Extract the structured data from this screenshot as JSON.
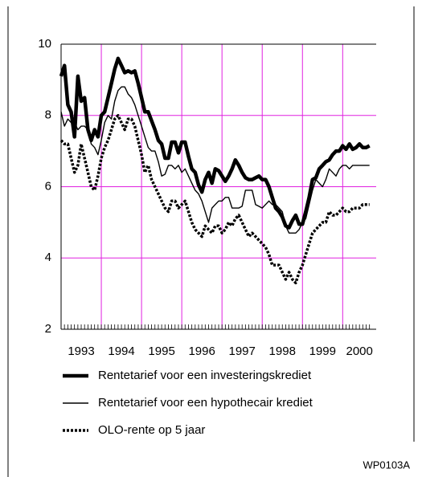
{
  "chart_data": {
    "type": "line",
    "x": [
      1993,
      1993.083,
      1993.167,
      1993.25,
      1993.333,
      1993.417,
      1993.5,
      1993.583,
      1993.667,
      1993.75,
      1993.833,
      1993.917,
      1994,
      1994.083,
      1994.167,
      1994.25,
      1994.333,
      1994.417,
      1994.5,
      1994.583,
      1994.667,
      1994.75,
      1994.833,
      1994.917,
      1995,
      1995.083,
      1995.167,
      1995.25,
      1995.333,
      1995.417,
      1995.5,
      1995.583,
      1995.667,
      1995.75,
      1995.833,
      1995.917,
      1996,
      1996.083,
      1996.167,
      1996.25,
      1996.333,
      1996.417,
      1996.5,
      1996.583,
      1996.667,
      1996.75,
      1996.833,
      1996.917,
      1997,
      1997.083,
      1997.167,
      1997.25,
      1997.333,
      1997.417,
      1997.5,
      1997.583,
      1997.667,
      1997.75,
      1997.833,
      1997.917,
      1998,
      1998.083,
      1998.167,
      1998.25,
      1998.333,
      1998.417,
      1998.5,
      1998.583,
      1998.667,
      1998.75,
      1998.833,
      1998.917,
      1999,
      1999.083,
      1999.167,
      1999.25,
      1999.333,
      1999.417,
      1999.5,
      1999.583,
      1999.667,
      1999.75,
      1999.833,
      1999.917,
      2000,
      2000.083,
      2000.167,
      2000.25,
      2000.333,
      2000.417,
      2000.5,
      2000.583,
      2000.667
    ],
    "series": [
      {
        "name": "Rentetarief voor een investeringskrediet",
        "color": "#000000",
        "width": 4.5,
        "dash": false,
        "values": [
          9.1,
          9.4,
          8.3,
          8.1,
          7.4,
          9.1,
          8.4,
          8.5,
          7.6,
          7.3,
          7.6,
          7.4,
          8.0,
          8.1,
          8.5,
          8.9,
          9.3,
          9.6,
          9.4,
          9.2,
          9.25,
          9.2,
          9.25,
          8.9,
          8.5,
          8.1,
          8.1,
          7.85,
          7.6,
          7.3,
          7.2,
          6.8,
          6.8,
          7.25,
          7.25,
          6.95,
          7.25,
          7.25,
          6.85,
          6.5,
          6.4,
          6.05,
          5.85,
          6.2,
          6.4,
          6.1,
          6.5,
          6.45,
          6.3,
          6.15,
          6.3,
          6.5,
          6.75,
          6.6,
          6.4,
          6.25,
          6.2,
          6.2,
          6.25,
          6.3,
          6.2,
          6.2,
          6.0,
          5.7,
          5.4,
          5.3,
          5.15,
          4.9,
          4.85,
          5.05,
          5.2,
          4.95,
          4.95,
          5.3,
          5.7,
          6.2,
          6.25,
          6.5,
          6.6,
          6.7,
          6.75,
          6.9,
          7.0,
          7.0,
          7.15,
          7.05,
          7.2,
          7.05,
          7.1,
          7.2,
          7.1,
          7.1,
          7.15
        ]
      },
      {
        "name": "Rentetarief voor een hypothecair krediet",
        "color": "#000000",
        "width": 1.4,
        "dash": false,
        "values": [
          8.1,
          7.7,
          7.9,
          7.8,
          7.8,
          7.6,
          7.7,
          7.7,
          7.6,
          7.2,
          7.1,
          6.9,
          7.3,
          7.8,
          8.0,
          7.9,
          8.4,
          8.7,
          8.8,
          8.8,
          8.6,
          8.5,
          8.3,
          8.0,
          7.7,
          7.4,
          7.1,
          7.0,
          7.0,
          6.7,
          6.3,
          6.35,
          6.6,
          6.6,
          6.5,
          6.6,
          6.4,
          6.5,
          6.3,
          6.1,
          5.9,
          5.8,
          5.6,
          5.3,
          5.0,
          5.4,
          5.5,
          5.6,
          5.6,
          5.7,
          5.7,
          5.4,
          5.4,
          5.4,
          5.45,
          5.9,
          5.9,
          5.9,
          5.5,
          5.45,
          5.4,
          5.5,
          5.6,
          5.5,
          5.5,
          5.4,
          5.3,
          4.9,
          4.7,
          4.7,
          4.7,
          4.8,
          5.0,
          5.1,
          5.5,
          5.9,
          6.2,
          6.1,
          6.0,
          6.2,
          6.5,
          6.4,
          6.3,
          6.5,
          6.6,
          6.6,
          6.5,
          6.6,
          6.6,
          6.6,
          6.6,
          6.6,
          6.6
        ]
      },
      {
        "name": "OLO-rente op 5 jaar",
        "color": "#000000",
        "width": 3.5,
        "dash": true,
        "values": [
          7.3,
          7.2,
          7.2,
          6.8,
          6.4,
          6.6,
          7.2,
          6.8,
          6.4,
          6.0,
          5.9,
          6.3,
          6.8,
          7.1,
          7.3,
          7.6,
          7.9,
          8.0,
          7.8,
          7.6,
          7.9,
          7.9,
          7.7,
          7.3,
          6.9,
          6.4,
          6.6,
          6.2,
          6.0,
          5.8,
          5.6,
          5.4,
          5.3,
          5.6,
          5.6,
          5.4,
          5.5,
          5.6,
          5.3,
          5.0,
          4.8,
          4.7,
          4.6,
          4.9,
          4.8,
          4.7,
          4.9,
          4.9,
          4.7,
          4.8,
          5.0,
          4.9,
          5.1,
          5.2,
          5.0,
          4.8,
          4.6,
          4.7,
          4.6,
          4.5,
          4.4,
          4.3,
          4.1,
          3.8,
          3.8,
          3.8,
          3.6,
          3.4,
          3.6,
          3.4,
          3.3,
          3.6,
          3.8,
          4.1,
          4.4,
          4.7,
          4.8,
          4.9,
          5.0,
          5.0,
          5.3,
          5.2,
          5.2,
          5.3,
          5.4,
          5.3,
          5.3,
          5.4,
          5.4,
          5.4,
          5.5,
          5.5,
          5.5
        ]
      }
    ],
    "xlim": [
      1993,
      2000.833
    ],
    "xticks": [
      {
        "value": 1993.5,
        "label": "1993"
      },
      {
        "value": 1994.5,
        "label": "1994"
      },
      {
        "value": 1995.5,
        "label": "1995"
      },
      {
        "value": 1996.5,
        "label": "1996"
      },
      {
        "value": 1997.5,
        "label": "1997"
      },
      {
        "value": 1998.5,
        "label": "1998"
      },
      {
        "value": 1999.5,
        "label": "1999"
      },
      {
        "value": 2000.417,
        "label": "2000"
      }
    ],
    "xgrid": [
      1994,
      1995,
      1996,
      1997,
      1998,
      1999,
      2000
    ],
    "ylim": [
      2,
      10
    ],
    "yticks": [
      2,
      4,
      6,
      8,
      10
    ],
    "grid": true,
    "grid_color": "#e020e0",
    "footnote": "WP0103A"
  }
}
